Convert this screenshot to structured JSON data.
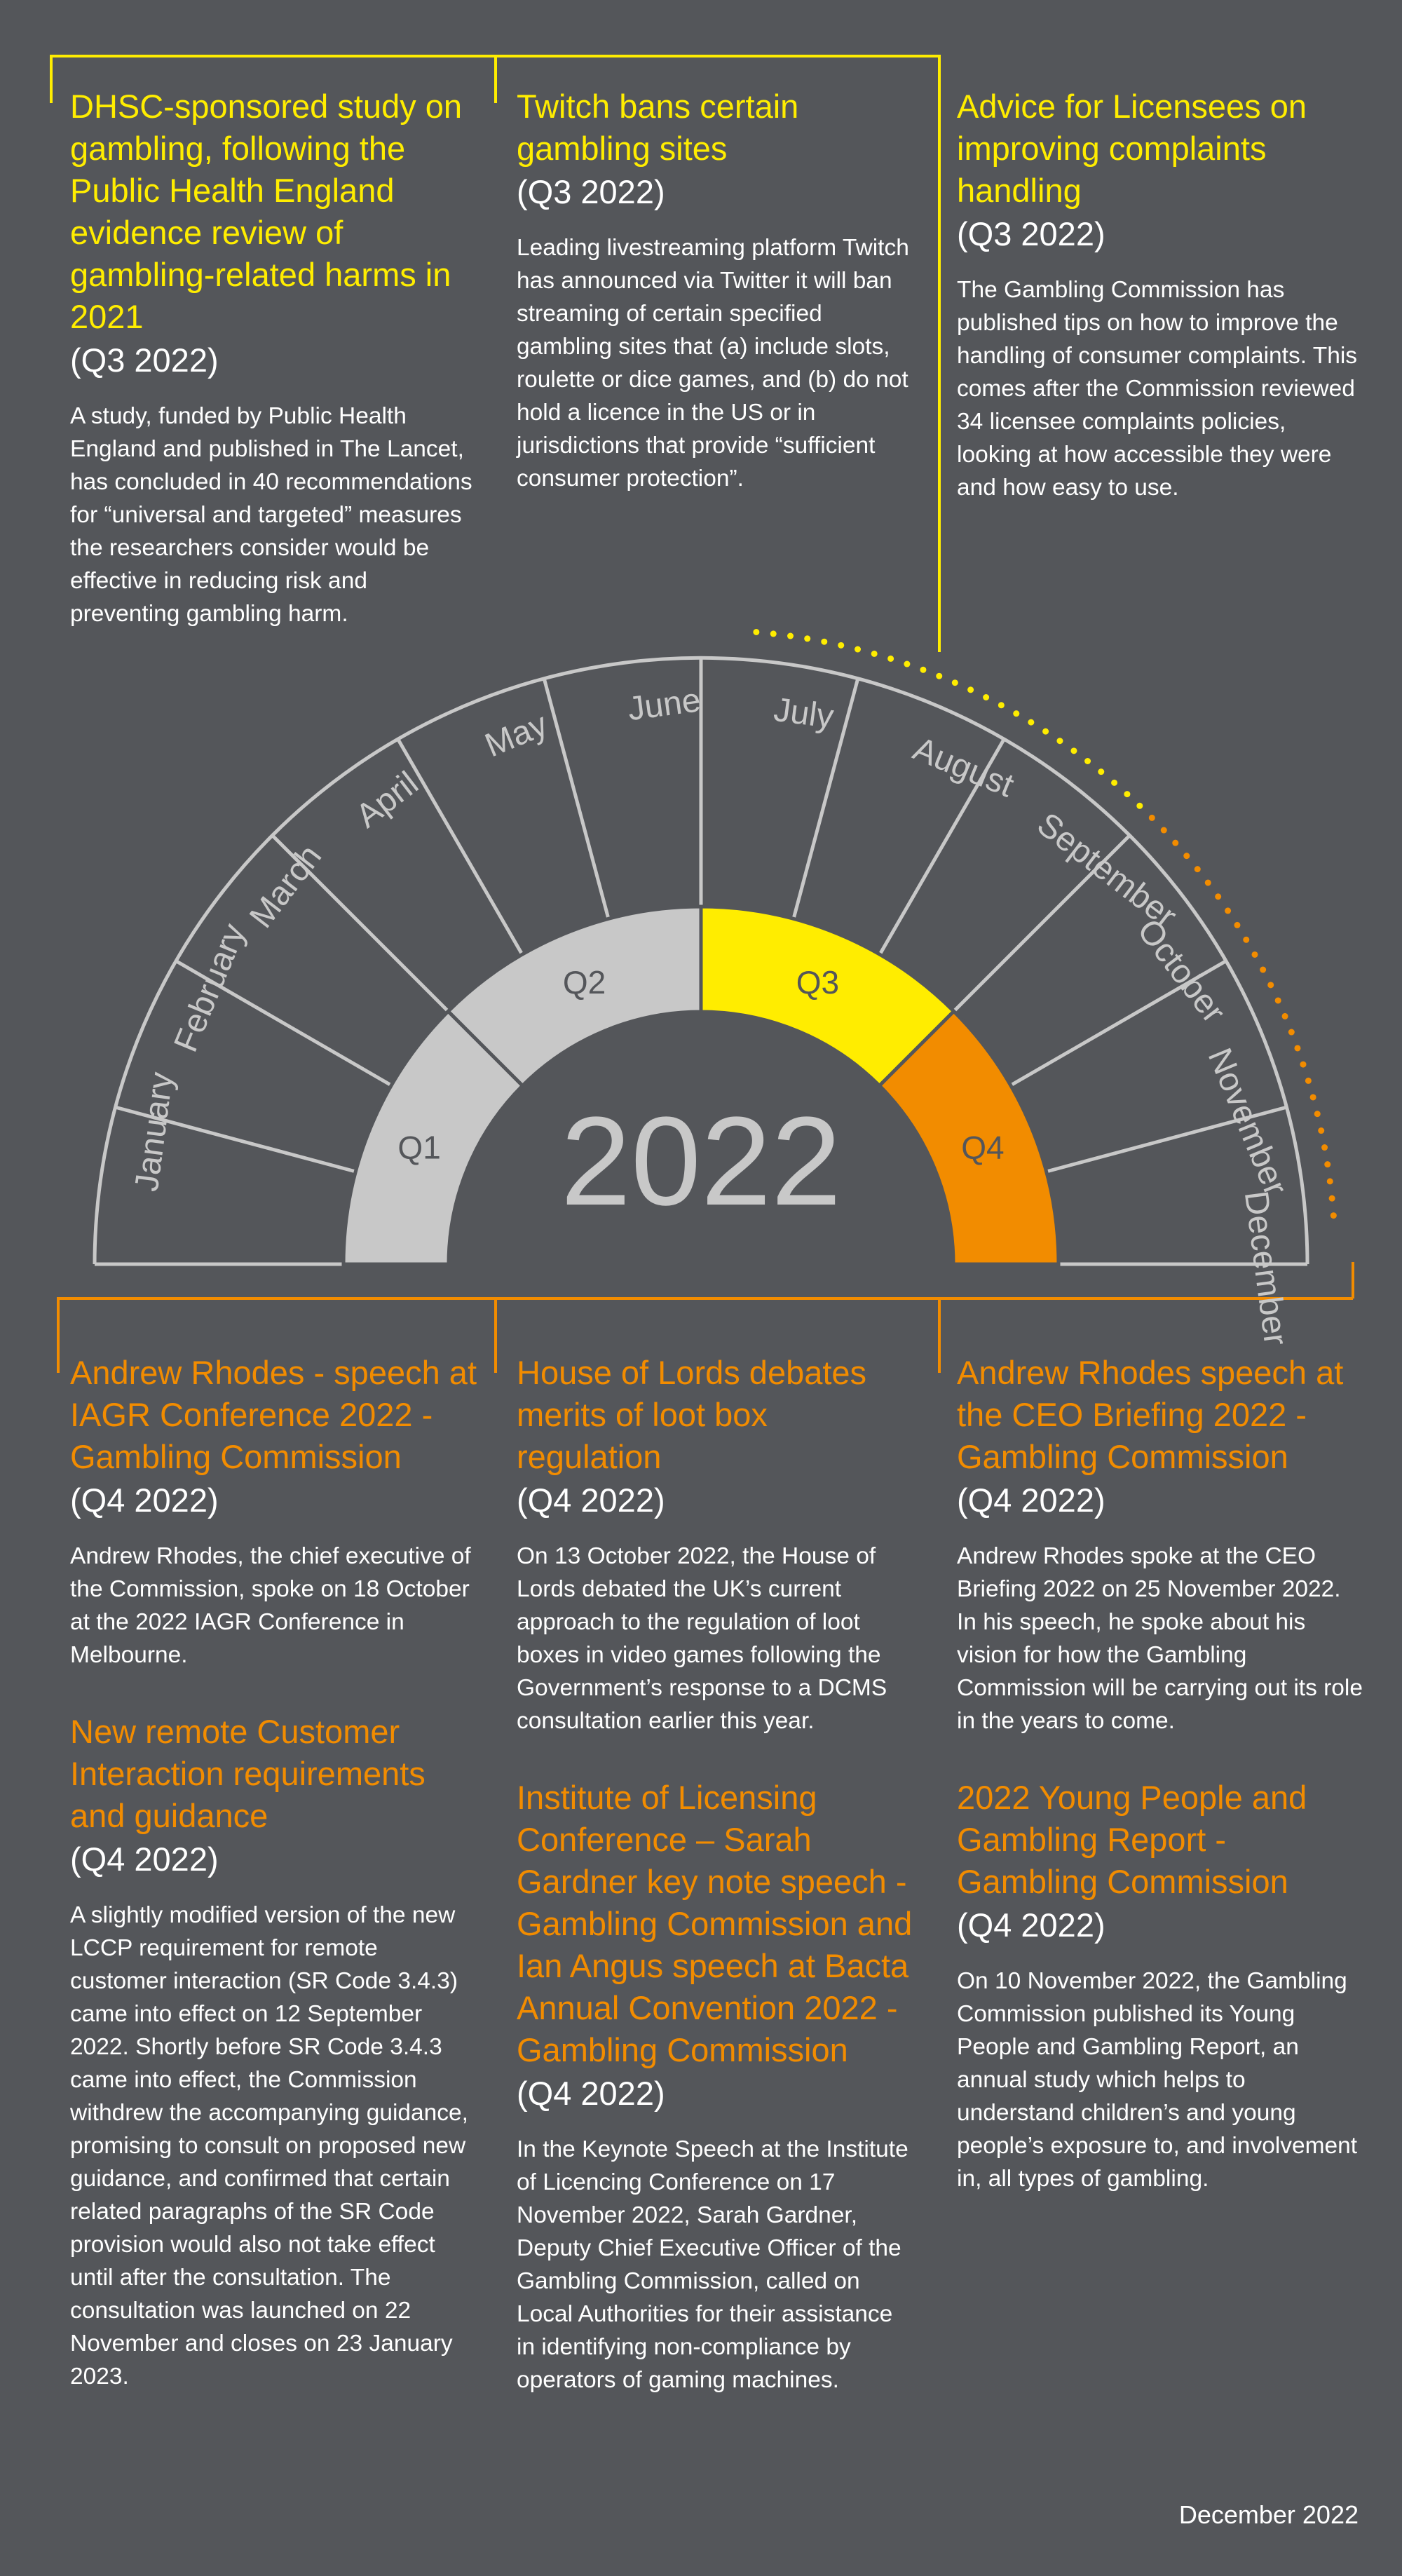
{
  "year": "2022",
  "footer": "December 2022",
  "colors": {
    "background": "#54565a",
    "q3": "#ffed00",
    "q4": "#f28c00",
    "q1q2": "#c8c8c8",
    "outline": "#c8c8c8"
  },
  "quarters": [
    "Q1",
    "Q2",
    "Q3",
    "Q4"
  ],
  "months": [
    "January",
    "February",
    "March",
    "April",
    "May",
    "June",
    "July",
    "August",
    "September",
    "October",
    "November",
    "December"
  ],
  "top_cards": [
    {
      "title": "DHSC-sponsored study on gambling, following the Public Health England evidence review of gambling-related harms in 2021",
      "date": "(Q3 2022)",
      "body": "A study, funded by Public Health England and published in The Lancet, has concluded in 40 recommendations for “universal and targeted” measures the researchers consider would be effective in reducing risk and preventing gambling harm."
    },
    {
      "title": "Twitch bans certain gambling sites",
      "date": "(Q3 2022)",
      "body": "Leading livestreaming platform Twitch has announced via Twitter it will  ban streaming of certain specified gambling sites that (a) include slots, roulette or dice games, and (b) do not hold a licence in the US or in jurisdictions that provide “sufficient consumer protection”."
    },
    {
      "title": "Advice for Licensees on improving complaints handling",
      "date": "(Q3 2022)",
      "body": "The Gambling Commission has published tips on how to improve the handling of consumer complaints. This comes after the Commission reviewed 34 licensee complaints policies, looking at how accessible they were and how easy to use."
    }
  ],
  "bottom_columns": [
    [
      {
        "title": "Andrew Rhodes - speech at IAGR Conference 2022 - Gambling Commission",
        "date": "(Q4 2022)",
        "body": "Andrew Rhodes, the chief executive of the Commission, spoke on 18 October at the 2022 IAGR Conference in Melbourne."
      },
      {
        "title": "New remote Customer Interaction requirements and guidance",
        "date": "(Q4 2022)",
        "body": "A slightly modified version of the new LCCP requirement for remote customer interaction (SR Code 3.4.3) came into effect on 12 September 2022.  Shortly before SR Code 3.4.3 came into effect, the Commission withdrew the accompanying guidance, promising to consult on proposed new guidance, and confirmed that certain related paragraphs of the SR Code provision would also not take effect until after the consultation. The consultation was launched on 22 November and closes on 23 January 2023."
      }
    ],
    [
      {
        "title": "House of Lords debates merits of loot box regulation",
        "date": "(Q4 2022)",
        "body": "On 13 October 2022, the House of Lords debated the UK’s current approach to the regulation of loot boxes in video games following the Government’s response to a DCMS consultation earlier this year."
      },
      {
        "title": "Institute of Licensing Conference – Sarah Gardner key note speech - Gambling Commission and Ian Angus speech at Bacta Annual Convention 2022 - Gambling Commission",
        "date": "(Q4 2022)",
        "body": "In the Keynote Speech at the Institute of Licencing Conference on 17 November 2022, Sarah Gardner, Deputy Chief Executive Officer of the Gambling Commission, called on Local Authorities for their assistance in identifying non-compliance by operators of gaming machines."
      }
    ],
    [
      {
        "title": "Andrew Rhodes speech at the CEO Briefing 2022 - Gambling Commission",
        "date": "(Q4 2022)",
        "body": "Andrew Rhodes spoke at the CEO Briefing 2022 on 25 November 2022. In his speech, he spoke about his vision for how the Gambling Commission will be carrying out its role in the years to come."
      },
      {
        "title": "2022 Young People and Gambling Report - Gambling Commission",
        "date": "(Q4 2022)",
        "body": "On 10 November 2022, the Gambling Commission published its Young People and Gambling Report, an annual study which helps to understand children’s and young people’s exposure to, and involvement in, all types of gambling."
      }
    ]
  ]
}
